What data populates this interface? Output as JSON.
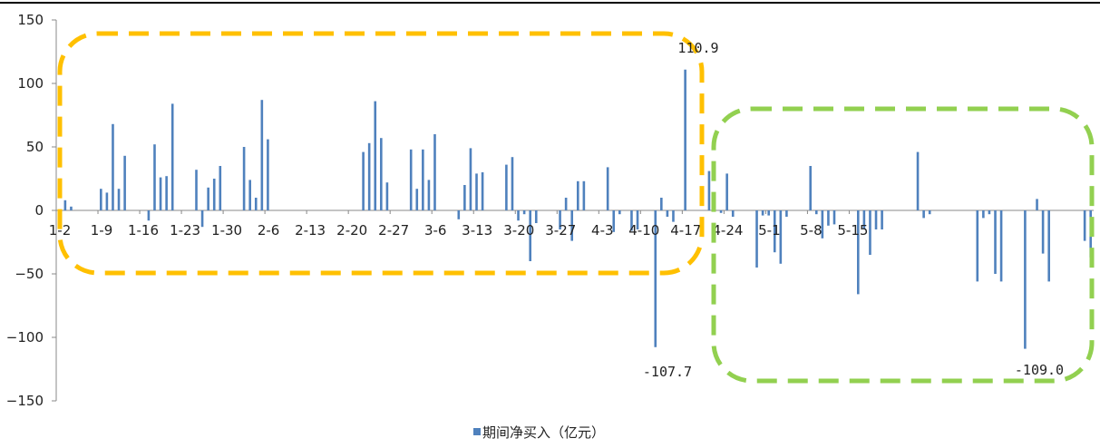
{
  "chart_data": {
    "type": "bar",
    "title": "",
    "xlabel": "",
    "ylabel": "",
    "ylim": [
      -150,
      150
    ],
    "yticks": [
      150,
      100,
      50,
      0,
      -50,
      -100,
      -150
    ],
    "ytick_labels": [
      "150",
      "100",
      "50",
      "0",
      "−50",
      "−100",
      "−150"
    ],
    "xtick_labels": [
      "1-2",
      "1-9",
      "1-16",
      "1-23",
      "1-30",
      "2-6",
      "2-13",
      "2-20",
      "2-27",
      "3-6",
      "3-13",
      "3-20",
      "3-27",
      "4-3",
      "4-10",
      "4-17",
      "4-24",
      "5-1",
      "5-8",
      "5-15"
    ],
    "bar_color": "#4f81bd",
    "series": [
      {
        "name": "期间净买入（亿元）",
        "values": [
          0,
          8,
          3,
          0,
          0,
          0,
          0,
          17,
          14,
          68,
          17,
          43,
          0,
          0,
          0,
          -8,
          52,
          26,
          27,
          84,
          0,
          0,
          0,
          32,
          -13,
          18,
          25,
          35,
          0,
          0,
          0,
          50,
          24,
          10,
          87,
          56,
          0,
          0,
          0,
          0,
          0,
          0,
          0,
          0,
          0,
          0,
          0,
          0,
          0,
          0,
          0,
          46,
          53,
          86,
          57,
          22,
          0,
          0,
          0,
          48,
          17,
          48,
          24,
          60,
          0,
          0,
          0,
          -7,
          20,
          49,
          29,
          30,
          0,
          0,
          0,
          36,
          42,
          -8,
          -3,
          -40,
          -10,
          0,
          0,
          0,
          -15,
          10,
          -24,
          23,
          23,
          0,
          0,
          0,
          34,
          -17,
          -3,
          0,
          -16,
          -15,
          0,
          0,
          -107.7,
          10,
          -5,
          -9,
          0,
          110.9,
          0,
          0,
          0,
          31,
          0,
          -2,
          29,
          -5,
          0,
          0,
          0,
          -45,
          -4,
          -4,
          -33,
          -42,
          -5,
          0,
          0,
          0,
          35,
          -3,
          -22,
          -12,
          -11,
          0,
          0,
          0,
          -66,
          -15,
          -35,
          -15,
          -15,
          0,
          0,
          0,
          0,
          0,
          46,
          -6,
          -3,
          0,
          0,
          0,
          0,
          0,
          0,
          0,
          -56,
          -6,
          -3,
          -50,
          -56,
          0,
          0,
          0,
          -109.0,
          0,
          9,
          -34,
          -56,
          0,
          0,
          0,
          0,
          0,
          -24,
          -37
        ]
      }
    ],
    "annotations": [
      "110.9",
      "-107.7",
      "-109.0"
    ],
    "highlight_colors": [
      "#ffc000",
      "#92d050"
    ]
  }
}
